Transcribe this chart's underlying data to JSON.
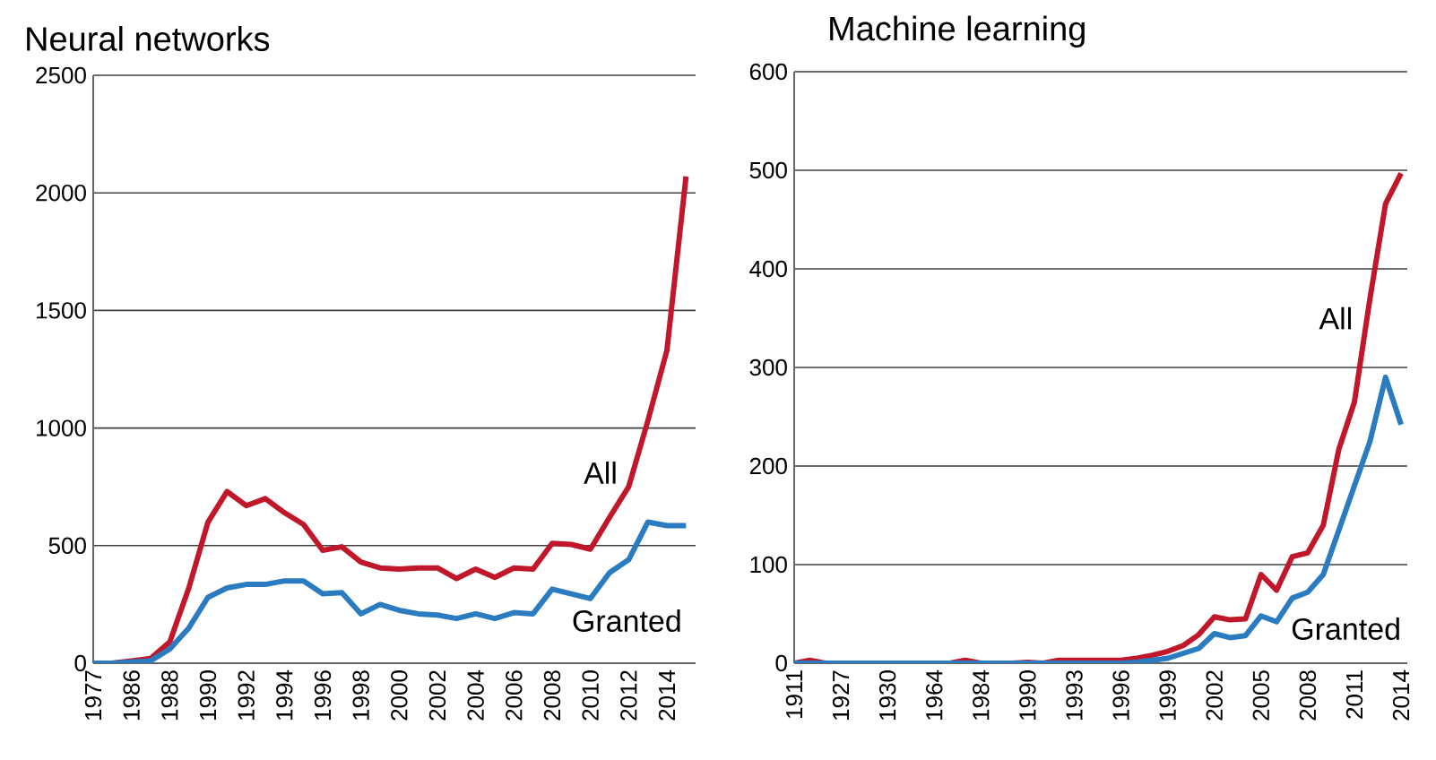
{
  "chart_data": [
    {
      "type": "line",
      "title": "Neural networks",
      "grid": "y",
      "ylim": [
        0,
        2500
      ],
      "yticks": [
        0,
        500,
        1000,
        1500,
        2000,
        2500
      ],
      "categories": [
        "1977",
        null,
        "1986",
        null,
        "1988",
        null,
        "1990",
        null,
        "1992",
        null,
        "1994",
        null,
        "1996",
        null,
        "1998",
        null,
        "2000",
        null,
        "2002",
        null,
        "2004",
        null,
        "2006",
        null,
        "2008",
        null,
        "2010",
        null,
        "2012",
        null,
        "2014",
        null
      ],
      "series": [
        {
          "name": "All",
          "color": "#c0172b",
          "values": [
            0,
            0,
            10,
            20,
            90,
            320,
            600,
            730,
            670,
            700,
            640,
            590,
            480,
            495,
            430,
            405,
            400,
            405,
            405,
            360,
            400,
            365,
            405,
            400,
            510,
            505,
            485,
            620,
            750,
            1030,
            1330,
            2070
          ]
        },
        {
          "name": "Granted",
          "color": "#2a7bc0",
          "values": [
            0,
            0,
            5,
            10,
            60,
            150,
            280,
            320,
            335,
            335,
            350,
            350,
            295,
            300,
            210,
            250,
            225,
            210,
            205,
            190,
            210,
            190,
            215,
            210,
            315,
            295,
            275,
            385,
            440,
            600,
            585,
            585
          ]
        }
      ]
    },
    {
      "type": "line",
      "title": "Machine learning",
      "grid": "y",
      "ylim": [
        0,
        600
      ],
      "yticks": [
        0,
        100,
        200,
        300,
        400,
        500,
        600
      ],
      "categories": [
        "1911",
        null,
        null,
        "1927",
        null,
        null,
        "1930",
        null,
        null,
        "1964",
        null,
        null,
        "1984",
        null,
        null,
        "1990",
        null,
        null,
        "1993",
        null,
        null,
        "1996",
        null,
        null,
        "1999",
        null,
        null,
        "2002",
        null,
        null,
        "2005",
        null,
        null,
        "2008",
        null,
        null,
        "2011",
        null,
        null,
        "2014"
      ],
      "series": [
        {
          "name": "All",
          "color": "#c0172b",
          "values": [
            0,
            3,
            0,
            0,
            0,
            0,
            0,
            0,
            0,
            0,
            0,
            3,
            0,
            0,
            0,
            1,
            0,
            3,
            3,
            3,
            3,
            3,
            5,
            8,
            12,
            18,
            29,
            47,
            44,
            45,
            90,
            74,
            108,
            112,
            140,
            217,
            265,
            370,
            466,
            497
          ]
        },
        {
          "name": "Granted",
          "color": "#2a7bc0",
          "values": [
            0,
            0,
            0,
            0,
            0,
            0,
            0,
            0,
            0,
            0,
            0,
            0,
            0,
            0,
            0,
            0,
            0,
            0,
            0,
            0,
            0,
            0,
            1,
            3,
            5,
            10,
            15,
            30,
            26,
            28,
            48,
            42,
            66,
            72,
            90,
            135,
            180,
            225,
            290,
            242
          ]
        }
      ]
    }
  ]
}
